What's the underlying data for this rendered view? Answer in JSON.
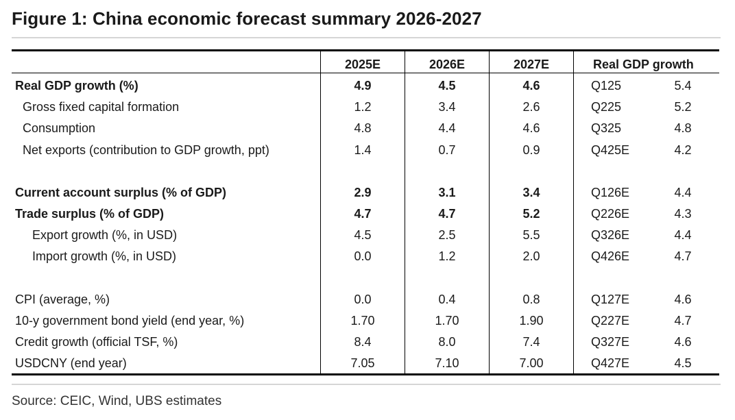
{
  "title": "Figure 1: China economic forecast summary 2026-2027",
  "source": "Source: CEIC, Wind, UBS estimates",
  "headers": {
    "c1": "2025E",
    "c2": "2026E",
    "c3": "2027E",
    "gdp": "Real GDP growth"
  },
  "rows": [
    {
      "label": "Real GDP growth (%)",
      "v1": "4.9",
      "v2": "4.5",
      "v3": "4.6",
      "q": "Q125",
      "qv": "5.4"
    },
    {
      "label": "Gross fixed capital formation",
      "v1": "1.2",
      "v2": "3.4",
      "v3": "2.6",
      "q": "Q225",
      "qv": "5.2"
    },
    {
      "label": "Consumption",
      "v1": "4.8",
      "v2": "4.4",
      "v3": "4.6",
      "q": "Q325",
      "qv": "4.8"
    },
    {
      "label": "Net exports (contribution to GDP growth, ppt)",
      "v1": "1.4",
      "v2": "0.7",
      "v3": "0.9",
      "q": "Q425E",
      "qv": "4.2"
    },
    {
      "label": "Current account surplus (% of GDP)",
      "v1": "2.9",
      "v2": "3.1",
      "v3": "3.4",
      "q": "Q126E",
      "qv": "4.4"
    },
    {
      "label": "Trade surplus (% of GDP)",
      "v1": "4.7",
      "v2": "4.7",
      "v3": "5.2",
      "q": "Q226E",
      "qv": "4.3"
    },
    {
      "label": "Export growth (%, in USD)",
      "v1": "4.5",
      "v2": "2.5",
      "v3": "5.5",
      "q": "Q326E",
      "qv": "4.4"
    },
    {
      "label": "Import growth (%, in USD)",
      "v1": "0.0",
      "v2": "1.2",
      "v3": "2.0",
      "q": "Q426E",
      "qv": "4.7"
    },
    {
      "label": "CPI (average, %)",
      "v1": "0.0",
      "v2": "0.4",
      "v3": "0.8",
      "q": "Q127E",
      "qv": "4.6"
    },
    {
      "label": "10-y government bond yield (end year, %)",
      "v1": "1.70",
      "v2": "1.70",
      "v3": "1.90",
      "q": "Q227E",
      "qv": "4.7"
    },
    {
      "label": "Credit growth (official TSF, %)",
      "v1": "8.4",
      "v2": "8.0",
      "v3": "7.4",
      "q": "Q327E",
      "qv": "4.6"
    },
    {
      "label": "USDCNY (end year)",
      "v1": "7.05",
      "v2": "7.10",
      "v3": "7.00",
      "q": "Q427E",
      "qv": "4.5"
    }
  ]
}
